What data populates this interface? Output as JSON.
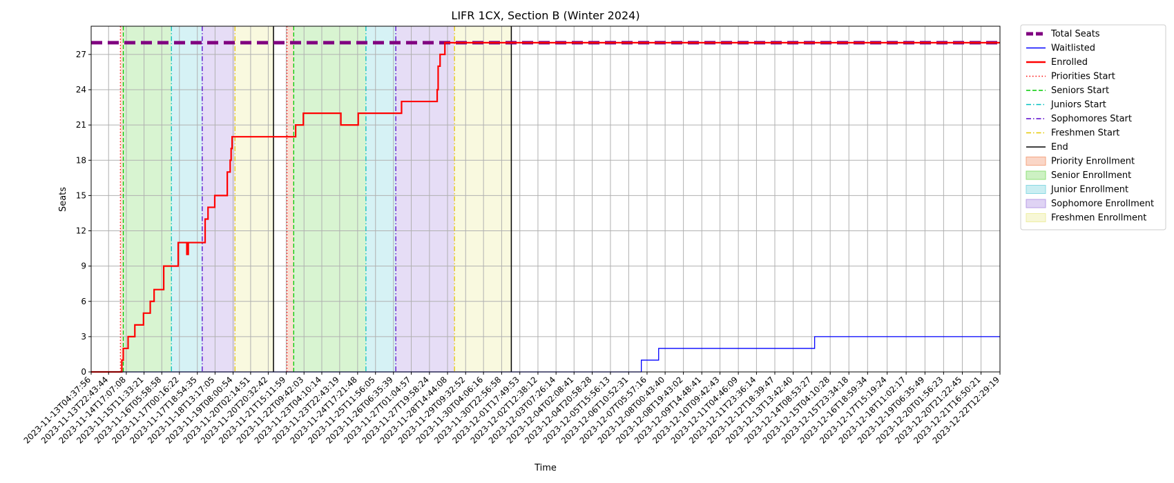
{
  "chart_data": {
    "type": "line",
    "title": "LIFR 1CX, Section B (Winter 2024)",
    "xlabel": "Time",
    "ylabel": "Seats",
    "x_range": [
      "2023-11-13T04:37:56",
      "2023-12-22T12:29:19"
    ],
    "ylim": [
      0,
      29.4
    ],
    "yticks": [
      0,
      3,
      6,
      9,
      12,
      15,
      18,
      21,
      24,
      27
    ],
    "xticks": [
      "2023-11-13T04:37:56",
      "2023-11-13T22:43:44",
      "2023-11-14T17:07:08",
      "2023-11-15T11:33:21",
      "2023-11-16T05:58:58",
      "2023-11-17T00:16:22",
      "2023-11-17T18:54:35",
      "2023-11-18T13:17:05",
      "2023-11-19T08:00:54",
      "2023-11-20T02:14:51",
      "2023-11-20T20:32:42",
      "2023-11-21T15:11:59",
      "2023-11-22T09:42:03",
      "2023-11-23T04:10:14",
      "2023-11-23T22:43:19",
      "2023-11-24T17:21:48",
      "2023-11-25T11:56:05",
      "2023-11-26T06:35:39",
      "2023-11-27T01:04:57",
      "2023-11-27T19:58:24",
      "2023-11-28T14:44:08",
      "2023-11-29T09:32:52",
      "2023-11-30T04:06:16",
      "2023-11-30T22:56:58",
      "2023-12-01T17:49:53",
      "2023-12-02T12:38:12",
      "2023-12-03T07:26:14",
      "2023-12-04T02:08:41",
      "2023-12-04T20:58:28",
      "2023-12-05T15:56:13",
      "2023-12-06T10:52:31",
      "2023-12-07T05:57:16",
      "2023-12-08T00:43:40",
      "2023-12-08T19:43:02",
      "2023-12-09T14:48:41",
      "2023-12-10T09:42:43",
      "2023-12-11T04:46:09",
      "2023-12-11T23:36:14",
      "2023-12-12T18:39:47",
      "2023-12-13T13:42:40",
      "2023-12-14T08:53:27",
      "2023-12-15T04:10:28",
      "2023-12-15T23:34:18",
      "2023-12-16T18:59:34",
      "2023-12-17T15:19:24",
      "2023-12-18T11:02:17",
      "2023-12-19T06:35:49",
      "2023-12-20T01:56:23",
      "2023-12-20T21:22:45",
      "2023-12-21T16:50:21",
      "2023-12-22T12:29:19"
    ],
    "grid": true,
    "legend_position": "outside-right",
    "total_seats": 28,
    "series": [
      {
        "name": "Total Seats",
        "color": "#800080",
        "points": [
          [
            "2023-11-13T04:37:56",
            28
          ],
          [
            "2023-12-22T12:29:19",
            28
          ]
        ]
      },
      {
        "name": "Waitlisted",
        "color": "#0000ff",
        "points": [
          [
            "2023-11-13T04:37:56",
            0
          ],
          [
            "2023-12-07T00:00:00",
            0
          ],
          [
            "2023-12-07T00:00:00",
            1
          ],
          [
            "2023-12-07T18:00:00",
            1
          ],
          [
            "2023-12-07T18:00:00",
            2
          ],
          [
            "2023-12-14T12:00:00",
            2
          ],
          [
            "2023-12-14T12:00:00",
            3
          ],
          [
            "2023-12-22T12:29:19",
            3
          ]
        ]
      },
      {
        "name": "Enrolled",
        "color": "#ff0000",
        "points": [
          [
            "2023-11-13T04:37:56",
            0
          ],
          [
            "2023-11-14T12:30:00",
            0
          ],
          [
            "2023-11-14T12:30:00",
            1
          ],
          [
            "2023-11-14T14:00:00",
            1
          ],
          [
            "2023-11-14T14:00:00",
            2
          ],
          [
            "2023-11-14T19:00:00",
            2
          ],
          [
            "2023-11-14T19:00:00",
            3
          ],
          [
            "2023-11-15T02:00:00",
            3
          ],
          [
            "2023-11-15T02:00:00",
            4
          ],
          [
            "2023-11-15T11:00:00",
            4
          ],
          [
            "2023-11-15T11:00:00",
            5
          ],
          [
            "2023-11-15T18:00:00",
            5
          ],
          [
            "2023-11-15T18:00:00",
            6
          ],
          [
            "2023-11-15T22:00:00",
            6
          ],
          [
            "2023-11-15T22:00:00",
            7
          ],
          [
            "2023-11-16T08:00:00",
            7
          ],
          [
            "2023-11-16T08:00:00",
            9
          ],
          [
            "2023-11-16T23:00:00",
            9
          ],
          [
            "2023-11-16T23:00:00",
            11
          ],
          [
            "2023-11-17T08:00:00",
            11
          ],
          [
            "2023-11-17T08:00:00",
            10
          ],
          [
            "2023-11-17T09:30:00",
            10
          ],
          [
            "2023-11-17T09:30:00",
            11
          ],
          [
            "2023-11-18T03:00:00",
            11
          ],
          [
            "2023-11-18T03:00:00",
            13
          ],
          [
            "2023-11-18T06:00:00",
            13
          ],
          [
            "2023-11-18T06:00:00",
            14
          ],
          [
            "2023-11-18T13:00:00",
            14
          ],
          [
            "2023-11-18T13:00:00",
            15
          ],
          [
            "2023-11-19T02:00:00",
            15
          ],
          [
            "2023-11-19T02:00:00",
            17
          ],
          [
            "2023-11-19T05:00:00",
            17
          ],
          [
            "2023-11-19T05:00:00",
            18
          ],
          [
            "2023-11-19T06:00:00",
            18
          ],
          [
            "2023-11-19T06:00:00",
            19
          ],
          [
            "2023-11-19T07:00:00",
            19
          ],
          [
            "2023-11-19T07:00:00",
            20
          ],
          [
            "2023-11-22T01:00:00",
            20
          ],
          [
            "2023-11-22T01:00:00",
            21
          ],
          [
            "2023-11-22T09:00:00",
            21
          ],
          [
            "2023-11-22T09:00:00",
            22
          ],
          [
            "2023-11-24T00:00:00",
            22
          ],
          [
            "2023-11-24T00:00:00",
            21
          ],
          [
            "2023-11-24T18:00:00",
            21
          ],
          [
            "2023-11-24T18:00:00",
            22
          ],
          [
            "2023-11-26T15:00:00",
            22
          ],
          [
            "2023-11-26T15:00:00",
            23
          ],
          [
            "2023-11-28T04:00:00",
            23
          ],
          [
            "2023-11-28T04:00:00",
            24
          ],
          [
            "2023-11-28T05:00:00",
            24
          ],
          [
            "2023-11-28T05:00:00",
            26
          ],
          [
            "2023-11-28T07:00:00",
            26
          ],
          [
            "2023-11-28T07:00:00",
            27
          ],
          [
            "2023-11-28T12:00:00",
            27
          ],
          [
            "2023-11-28T12:00:00",
            28
          ],
          [
            "2023-12-22T12:29:19",
            28
          ]
        ]
      }
    ],
    "vlines": [
      {
        "name": "Priorities Start",
        "color": "#ff0000",
        "style": "dotted",
        "x": [
          "2023-11-14T11:00:00",
          "2023-11-21T16:00:00"
        ]
      },
      {
        "name": "Seniors Start",
        "color": "#00cc00",
        "style": "dashed",
        "x": [
          "2023-11-14T14:00:00",
          "2023-11-21T23:00:00"
        ]
      },
      {
        "name": "Juniors Start",
        "color": "#00bfbf",
        "style": "dashdot",
        "x": [
          "2023-11-16T16:00:00",
          "2023-11-25T02:00:00"
        ]
      },
      {
        "name": "Sophomores Start",
        "color": "#5500cc",
        "style": "dashdot",
        "x": [
          "2023-11-18T00:00:00",
          "2023-11-26T09:00:00"
        ]
      },
      {
        "name": "Freshmen Start",
        "color": "#e6c800",
        "style": "dashdot",
        "x": [
          "2023-11-19T10:00:00",
          "2023-11-28T22:00:00"
        ]
      },
      {
        "name": "End",
        "color": "#000000",
        "style": "solid",
        "x": [
          "2023-11-21T02:00:00",
          "2023-12-01T09:00:00"
        ]
      }
    ],
    "spans": [
      {
        "name": "Priority Enrollment",
        "color": "#f4a582",
        "ranges": [
          [
            "2023-11-14T11:00:00",
            "2023-11-14T14:00:00"
          ],
          [
            "2023-11-21T16:00:00",
            "2023-11-21T23:00:00"
          ]
        ]
      },
      {
        "name": "Senior Enrollment",
        "color": "#90e07a",
        "ranges": [
          [
            "2023-11-14T14:00:00",
            "2023-11-16T16:00:00"
          ],
          [
            "2023-11-21T23:00:00",
            "2023-11-25T02:00:00"
          ]
        ]
      },
      {
        "name": "Junior Enrollment",
        "color": "#8ad9e3",
        "ranges": [
          [
            "2023-11-16T16:00:00",
            "2023-11-18T00:00:00"
          ],
          [
            "2023-11-25T02:00:00",
            "2023-11-26T09:00:00"
          ]
        ]
      },
      {
        "name": "Sophomore Enrollment",
        "color": "#b79de6",
        "ranges": [
          [
            "2023-11-18T00:00:00",
            "2023-11-19T10:00:00"
          ],
          [
            "2023-11-26T09:00:00",
            "2023-11-28T22:00:00"
          ]
        ]
      },
      {
        "name": "Freshmen Enrollment",
        "color": "#eeeea4",
        "ranges": [
          [
            "2023-11-19T10:00:00",
            "2023-11-21T02:00:00"
          ],
          [
            "2023-11-28T22:00:00",
            "2023-12-01T09:00:00"
          ]
        ]
      }
    ],
    "legend": [
      {
        "label": "Total Seats",
        "kind": "line",
        "color": "#800080",
        "style": "dashed-thick"
      },
      {
        "label": "Waitlisted",
        "kind": "line",
        "color": "#0000ff",
        "style": "solid"
      },
      {
        "label": "Enrolled",
        "kind": "line",
        "color": "#ff0000",
        "style": "solid-thick"
      },
      {
        "label": "Priorities Start",
        "kind": "line",
        "color": "#ff0000",
        "style": "dotted"
      },
      {
        "label": "Seniors Start",
        "kind": "line",
        "color": "#00cc00",
        "style": "dashed"
      },
      {
        "label": "Juniors Start",
        "kind": "line",
        "color": "#00bfbf",
        "style": "dashdot"
      },
      {
        "label": "Sophomores Start",
        "kind": "line",
        "color": "#5500cc",
        "style": "dashdot"
      },
      {
        "label": "Freshmen Start",
        "kind": "line",
        "color": "#e6c800",
        "style": "dashdot"
      },
      {
        "label": "End",
        "kind": "line",
        "color": "#000000",
        "style": "solid"
      },
      {
        "label": "Priority Enrollment",
        "kind": "patch",
        "color": "#f4a582"
      },
      {
        "label": "Senior Enrollment",
        "kind": "patch",
        "color": "#90e07a"
      },
      {
        "label": "Junior Enrollment",
        "kind": "patch",
        "color": "#8ad9e3"
      },
      {
        "label": "Sophomore Enrollment",
        "kind": "patch",
        "color": "#b79de6"
      },
      {
        "label": "Freshmen Enrollment",
        "kind": "patch",
        "color": "#eeeea4"
      }
    ]
  }
}
